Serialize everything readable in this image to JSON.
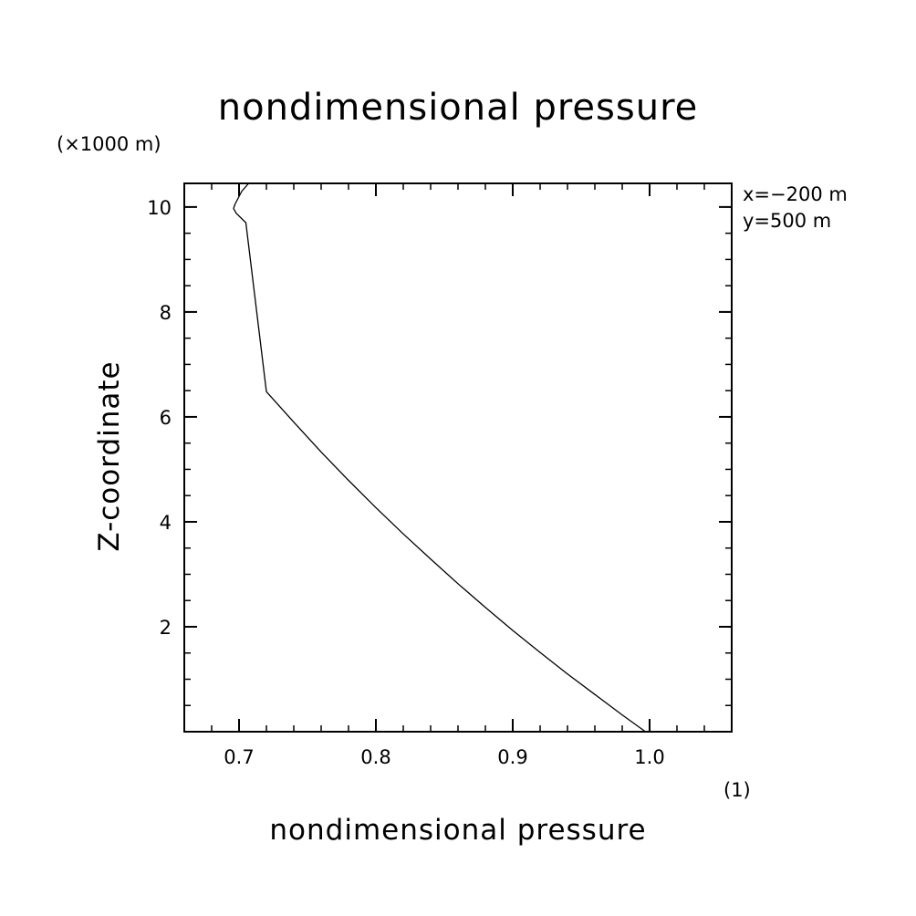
{
  "chart_data": {
    "type": "line",
    "title": "nondimensional pressure",
    "xlabel": "nondimensional pressure",
    "ylabel": "Z-coordinate",
    "x_unit": "(1)",
    "y_unit": "(×1000 m)",
    "annotations": [
      "x=−200 m",
      "y=500 m"
    ],
    "xlim": [
      0.66,
      1.06
    ],
    "ylim": [
      0.0,
      10.45
    ],
    "xticks": [
      0.7,
      0.8,
      0.9,
      1.0
    ],
    "xtick_labels": [
      "0.7",
      "0.8",
      "0.9",
      "1.0"
    ],
    "yticks": [
      2,
      4,
      6,
      8,
      10
    ],
    "ytick_labels": [
      "2",
      "4",
      "6",
      "8",
      "10"
    ],
    "x_minor_step": 0.02,
    "y_minor_step": 0.5,
    "grid": false,
    "legend": "none",
    "series": [
      {
        "x": [
          0.997,
          0.98,
          0.96,
          0.94,
          0.92,
          0.9,
          0.88,
          0.86,
          0.84,
          0.82,
          0.8,
          0.78,
          0.76,
          0.74,
          0.72,
          0.705,
          0.698,
          0.696,
          0.697,
          0.702,
          0.707
        ],
        "y": [
          0.0,
          0.32,
          0.71,
          1.1,
          1.51,
          1.93,
          2.37,
          2.82,
          3.29,
          3.77,
          4.27,
          4.79,
          5.33,
          5.9,
          6.48,
          9.7,
          9.88,
          9.97,
          10.05,
          10.3,
          10.45
        ]
      }
    ],
    "color": "#000000"
  }
}
